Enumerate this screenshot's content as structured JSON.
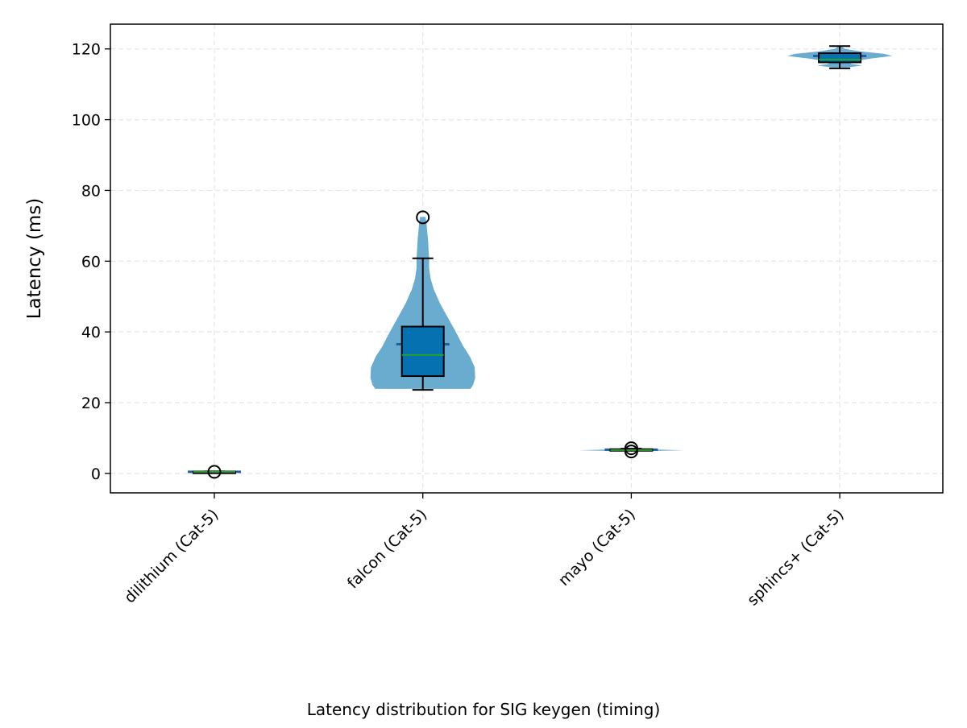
{
  "chart_data": {
    "type": "violin",
    "title": "",
    "xlabel": "Latency distribution for SIG keygen (timing)",
    "ylabel": "Latency (ms)",
    "ylim": [
      -5.5,
      127
    ],
    "yticks": [
      0,
      20,
      40,
      60,
      80,
      100,
      120
    ],
    "grid": true,
    "categories": [
      "dilithium (Cat-5)",
      "falcon (Cat-5)",
      "mayo (Cat-5)",
      "sphincs+ (Cat-5)"
    ],
    "series": [
      {
        "category": "dilithium (Cat-5)",
        "violin_profile": [
          [
            0.2,
            0.02
          ],
          [
            0.45,
            0.05
          ],
          [
            0.7,
            0.02
          ]
        ],
        "min": 0.35,
        "q1": 0.4,
        "median": 0.45,
        "mean": 0.46,
        "q3": 0.5,
        "max": 0.55,
        "outliers": [
          0.45
        ]
      },
      {
        "category": "falcon (Cat-5)",
        "violin_profile": [
          [
            23.9,
            0.91
          ],
          [
            25,
            0.96
          ],
          [
            27,
            1.0
          ],
          [
            30,
            0.99
          ],
          [
            33,
            0.9
          ],
          [
            36,
            0.77
          ],
          [
            40,
            0.63
          ],
          [
            44,
            0.48
          ],
          [
            48,
            0.33
          ],
          [
            52,
            0.21
          ],
          [
            55,
            0.15
          ],
          [
            58,
            0.12
          ],
          [
            61,
            0.12
          ],
          [
            63,
            0.11
          ],
          [
            66,
            0.1
          ],
          [
            69,
            0.08
          ],
          [
            71,
            0.07
          ],
          [
            72.5,
            0.05
          ]
        ],
        "min": 23.6,
        "q1": 27.5,
        "median": 33.5,
        "mean": 36.5,
        "q3": 41.5,
        "max": 60.8,
        "outliers": [
          72.4
        ]
      },
      {
        "category": "mayo (Cat-5)",
        "violin_profile": [
          [
            6.2,
            0.03
          ],
          [
            6.55,
            1.0
          ],
          [
            6.9,
            0.03
          ]
        ],
        "min": 6.5,
        "q1": 6.55,
        "median": 6.6,
        "mean": 6.7,
        "q3": 6.85,
        "max": 7.0,
        "outliers": [
          6.2,
          7.1
        ]
      },
      {
        "category": "sphincs+ (Cat-5)",
        "violin_profile": [
          [
            114.8,
            0.15
          ],
          [
            115.3,
            0.43
          ],
          [
            115.8,
            0.2
          ],
          [
            116.6,
            0.3
          ],
          [
            117.3,
            0.6
          ],
          [
            118.0,
            1.0
          ],
          [
            118.6,
            0.85
          ],
          [
            119.3,
            0.4
          ],
          [
            120.0,
            0.1
          ],
          [
            120.8,
            0.02
          ]
        ],
        "min": 114.5,
        "q1": 116.2,
        "median": 117.0,
        "mean": 118.0,
        "q3": 118.8,
        "max": 120.8,
        "outliers": []
      }
    ],
    "colors": {
      "violin": "#6aabd0",
      "box": "#0571b0",
      "median": "#2ca02c",
      "mean": "#1f5fa8",
      "grid": "#e6e6e6"
    }
  }
}
